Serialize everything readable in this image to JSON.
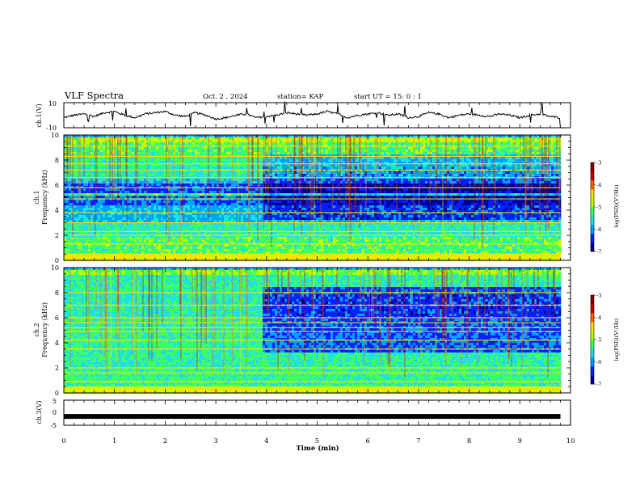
{
  "header": {
    "title": "VLF Spectra",
    "date": "Oct. 2 , 2024",
    "station": "station= KAP",
    "start": "start UT = 15: 0 : 1"
  },
  "colors": {
    "background": "#ffffff",
    "axis": "#000000",
    "colormap": [
      "#000090",
      "#0020ff",
      "#00a0ff",
      "#20e0e0",
      "#40ff60",
      "#c0ff00",
      "#ffe000",
      "#ff6000",
      "#c00000",
      "#800000"
    ]
  },
  "chart_data": [
    {
      "id": "ch1",
      "type": "line",
      "ylabel": "ch.1(V)",
      "ylim": [
        -10,
        10
      ],
      "yticks": [
        "10",
        "-10"
      ],
      "xlim": [
        0,
        10
      ],
      "x_end": 9.8,
      "series": [
        {
          "x": [
            0,
            0.2,
            0.4,
            0.6,
            0.8,
            1.0,
            1.2,
            1.4,
            1.6,
            1.8,
            2.0,
            2.2,
            2.4,
            2.6,
            2.8,
            3.0,
            3.2,
            3.4,
            3.6,
            3.8,
            4.0,
            4.2,
            4.4,
            4.6,
            4.8,
            5.0,
            5.2,
            5.4,
            5.6,
            5.8,
            6.0,
            6.2,
            6.4,
            6.6,
            6.8,
            7.0,
            7.2,
            7.4,
            7.6,
            7.8,
            8.0,
            8.2,
            8.4,
            8.6,
            8.8,
            9.0,
            9.2,
            9.4,
            9.6,
            9.8
          ],
          "values": [
            -2,
            0,
            1,
            -1,
            2,
            3,
            0,
            -2,
            1,
            2,
            3,
            0,
            -1,
            2,
            0,
            -3,
            -2,
            0,
            1,
            -2,
            -1,
            0,
            2,
            1,
            0,
            1,
            3,
            1,
            -2,
            0,
            1,
            2,
            0,
            1,
            -2,
            -1,
            2,
            1,
            -2,
            0,
            1,
            0,
            -1,
            1,
            0,
            -2,
            0,
            1,
            -1,
            -2
          ]
        }
      ]
    },
    {
      "id": "ch1-spec",
      "type": "heatmap",
      "ylabel": "Frequency (kHz)",
      "channel_label": "ch.1",
      "ylim": [
        0,
        10
      ],
      "yticks": [
        "0",
        "2",
        "4",
        "6",
        "8",
        "10"
      ],
      "xlim": [
        0,
        10
      ],
      "x_end": 9.8,
      "colorbar": {
        "label": "log(PSD)(V²/Hz)",
        "range": [
          -7,
          -3
        ],
        "ticks": [
          "-3",
          "-4",
          "-5",
          "-6",
          "-7"
        ]
      },
      "bands": [
        {
          "from": 9.6,
          "to": 10,
          "level": 0.55
        },
        {
          "from": 8.6,
          "to": 9.6,
          "level": 0.45
        },
        {
          "from": 7.6,
          "to": 8.6,
          "level": 0.42
        },
        {
          "from": 6.6,
          "to": 7.6,
          "level": 0.38
        },
        {
          "from": 6.3,
          "to": 6.6,
          "level": 0.3
        },
        {
          "from": 5.5,
          "to": 6.3,
          "level": 0.18
        },
        {
          "from": 5.2,
          "to": 5.5,
          "level": 0.45
        },
        {
          "from": 4.4,
          "to": 5.2,
          "level": 0.2
        },
        {
          "from": 3.2,
          "to": 4.4,
          "level": 0.28
        },
        {
          "from": 2.0,
          "to": 3.2,
          "level": 0.38
        },
        {
          "from": 0.6,
          "to": 2.0,
          "level": 0.45
        },
        {
          "from": 0,
          "to": 0.6,
          "level": 0.6
        }
      ],
      "change_time": 3.9,
      "change_drop": 0.12,
      "lines": [
        0.2,
        0.5,
        1.3,
        2.0,
        2.3,
        3.0,
        3.8,
        4.9,
        5.8,
        6.6,
        7.2,
        7.7,
        8.3,
        9.1
      ]
    },
    {
      "id": "ch2-spec",
      "type": "heatmap",
      "ylabel": "Frequency (kHz)",
      "channel_label": "ch.2",
      "ylim": [
        0,
        10
      ],
      "yticks": [
        "0",
        "2",
        "4",
        "6",
        "8",
        "10"
      ],
      "xlim": [
        0,
        10
      ],
      "x_end": 9.8,
      "colorbar": {
        "label": "log(PSD)(V²/Hz)",
        "range": [
          -7,
          -3
        ],
        "ticks": [
          "-3",
          "-4",
          "-5",
          "-6",
          "-7"
        ]
      },
      "bands": [
        {
          "from": 9.5,
          "to": 10,
          "level": 0.5
        },
        {
          "from": 8.0,
          "to": 9.5,
          "level": 0.4
        },
        {
          "from": 6.0,
          "to": 8.0,
          "level": 0.38
        },
        {
          "from": 5.3,
          "to": 6.0,
          "level": 0.4
        },
        {
          "from": 3.6,
          "to": 5.3,
          "level": 0.42
        },
        {
          "from": 2.0,
          "to": 3.6,
          "level": 0.4
        },
        {
          "from": 0.6,
          "to": 2.0,
          "level": 0.42
        },
        {
          "from": 0,
          "to": 0.6,
          "level": 0.58
        }
      ],
      "change_time": 3.9,
      "change_drop": 0.22,
      "lines": [
        0.3,
        0.9,
        1.6,
        2.0,
        3.5,
        4.2,
        4.9,
        5.2,
        5.6,
        6.0,
        7.0,
        8.0
      ]
    },
    {
      "id": "ch3",
      "type": "line",
      "ylabel": "ch.3(V)",
      "ylim": [
        -5,
        5
      ],
      "yticks": [
        "5",
        "0",
        "-5"
      ],
      "xlim": [
        0,
        10
      ],
      "x_end": 9.8,
      "xlabel": "Time (min)",
      "xticks": [
        "0",
        "1",
        "2",
        "3",
        "4",
        "5",
        "6",
        "7",
        "8",
        "9",
        "10"
      ],
      "series": [
        {
          "x": [
            0,
            9.8
          ],
          "values": [
            -1.5,
            -1.5
          ]
        }
      ]
    }
  ]
}
